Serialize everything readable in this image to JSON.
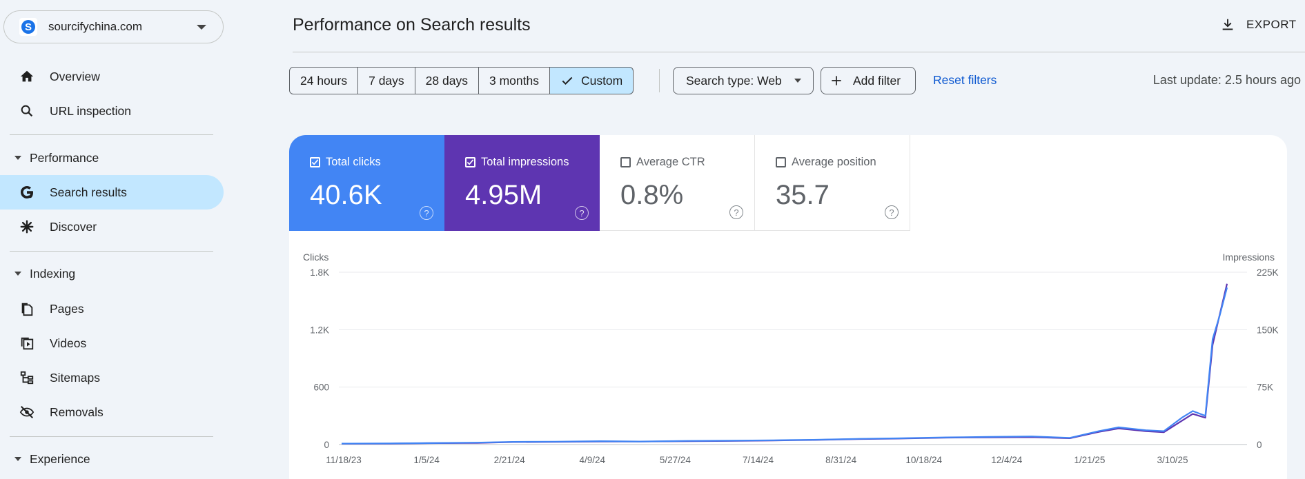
{
  "property": {
    "icon_letter": "S",
    "name": "sourcifychina.com"
  },
  "nav": {
    "overview": "Overview",
    "url_inspection": "URL inspection",
    "performance_header": "Performance",
    "search_results": "Search results",
    "discover": "Discover",
    "indexing_header": "Indexing",
    "pages": "Pages",
    "videos": "Videos",
    "sitemaps": "Sitemaps",
    "removals": "Removals",
    "experience_header": "Experience"
  },
  "header": {
    "title": "Performance on Search results",
    "export_label": "EXPORT"
  },
  "date_range": {
    "options": [
      "24 hours",
      "7 days",
      "28 days",
      "3 months",
      "Custom"
    ],
    "selected": "Custom"
  },
  "filters": {
    "search_type": "Search type: Web",
    "add_filter": "Add filter",
    "reset": "Reset filters",
    "last_update": "Last update: 2.5 hours ago"
  },
  "metrics": [
    {
      "label": "Total clicks",
      "value": "40.6K",
      "checked": true,
      "color": "#4285f4"
    },
    {
      "label": "Total impressions",
      "value": "4.95M",
      "checked": true,
      "color": "#5e35b1"
    },
    {
      "label": "Average CTR",
      "value": "0.8%",
      "checked": false
    },
    {
      "label": "Average position",
      "value": "35.7",
      "checked": false
    }
  ],
  "chart_data": {
    "type": "line",
    "left_axis_label": "Clicks",
    "right_axis_label": "Impressions",
    "left_ticks": [
      "0",
      "600",
      "1.2K",
      "1.8K"
    ],
    "right_ticks": [
      "0",
      "75K",
      "150K",
      "225K"
    ],
    "ylim_left": [
      0,
      1800
    ],
    "ylim_right": [
      0,
      225000
    ],
    "x_tick_labels": [
      "11/18/23",
      "1/5/24",
      "2/21/24",
      "4/9/24",
      "5/27/24",
      "7/14/24",
      "8/31/24",
      "10/18/24",
      "12/4/24",
      "1/21/25",
      "3/10/25"
    ],
    "grid": true,
    "series": [
      {
        "name": "Clicks",
        "axis": "left",
        "color": "#4285f4",
        "dates": [
          "2023-11-18",
          "2023-12-15",
          "2024-01-05",
          "2024-02-01",
          "2024-02-21",
          "2024-03-15",
          "2024-04-09",
          "2024-05-01",
          "2024-05-27",
          "2024-06-20",
          "2024-07-14",
          "2024-08-05",
          "2024-08-31",
          "2024-09-20",
          "2024-10-18",
          "2024-11-10",
          "2024-12-04",
          "2024-12-25",
          "2025-01-10",
          "2025-01-21",
          "2025-02-05",
          "2025-02-15",
          "2025-02-25",
          "2025-03-03",
          "2025-03-10",
          "2025-03-14",
          "2025-03-18",
          "2025-03-22"
        ],
        "values": [
          10,
          12,
          15,
          20,
          28,
          30,
          35,
          32,
          38,
          40,
          45,
          50,
          60,
          65,
          75,
          80,
          85,
          70,
          140,
          180,
          150,
          140,
          280,
          350,
          300,
          1100,
          1350,
          1640
        ]
      },
      {
        "name": "Impressions",
        "axis": "right",
        "color": "#5e35b1",
        "dates": [
          "2023-11-18",
          "2023-12-15",
          "2024-01-05",
          "2024-02-01",
          "2024-02-21",
          "2024-03-15",
          "2024-04-09",
          "2024-05-01",
          "2024-05-27",
          "2024-06-20",
          "2024-07-14",
          "2024-08-05",
          "2024-08-31",
          "2024-09-20",
          "2024-10-18",
          "2024-11-10",
          "2024-12-04",
          "2024-12-25",
          "2025-01-10",
          "2025-01-21",
          "2025-02-05",
          "2025-02-15",
          "2025-02-25",
          "2025-03-03",
          "2025-03-10",
          "2025-03-14",
          "2025-03-18",
          "2025-03-22"
        ],
        "values": [
          1100,
          1300,
          1800,
          2200,
          3200,
          3400,
          4000,
          3900,
          4300,
          4700,
          5300,
          5900,
          7200,
          7700,
          9000,
          9400,
          9600,
          8200,
          16500,
          21000,
          17500,
          16000,
          31000,
          40000,
          35000,
          130000,
          170000,
          210000
        ]
      }
    ]
  }
}
